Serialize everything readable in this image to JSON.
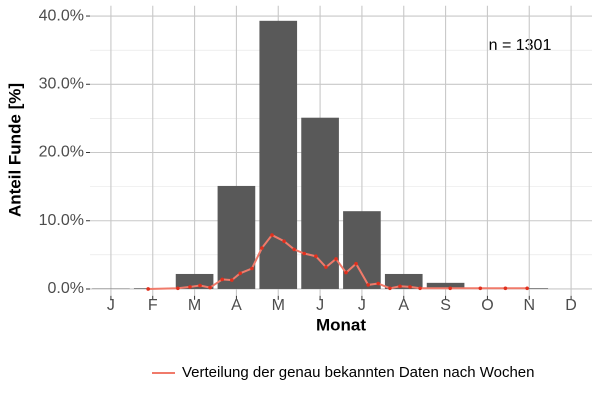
{
  "chart_data": {
    "type": "bar",
    "ylabel": "Anteil Funde [%]",
    "xlabel": "Monat",
    "annotation": "n = 1301",
    "categories": [
      "J",
      "F",
      "M",
      "A",
      "M",
      "J",
      "J",
      "A",
      "S",
      "O",
      "N",
      "D"
    ],
    "values": [
      0.05,
      0.1,
      2.2,
      15.1,
      39.3,
      25.1,
      11.4,
      2.2,
      0.9,
      0.2,
      0.1,
      0
    ],
    "color": "#595959",
    "ylim": [
      -1,
      41.5
    ],
    "yticks": [
      {
        "value": 0,
        "label": "0.0%"
      },
      {
        "value": 10,
        "label": "10.0%"
      },
      {
        "value": 20,
        "label": "20.0%"
      },
      {
        "value": 30,
        "label": "30.0%"
      },
      {
        "value": 40,
        "label": "40.0%"
      }
    ],
    "yminorticks": [
      5,
      15,
      25,
      35
    ],
    "xlim": [
      0.5,
      12.5
    ],
    "grid": true,
    "line": {
      "name": "Verteilung der genau bekannten Daten nach Wochen",
      "color": "#f07a6a",
      "marker_color": "#e0301e",
      "x": [
        1.89,
        2.6,
        2.89,
        3.13,
        3.37,
        3.66,
        3.89,
        4.09,
        4.37,
        4.61,
        4.85,
        5.14,
        5.38,
        5.62,
        5.9,
        6.14,
        6.38,
        6.62,
        6.86,
        7.15,
        7.39,
        7.67,
        7.91,
        8.15,
        8.39,
        9.11,
        9.83,
        10.43,
        10.95
      ],
      "values": [
        0,
        0.1,
        0.3,
        0.5,
        0.2,
        1.4,
        1.3,
        2.3,
        3.0,
        6.0,
        7.9,
        7.0,
        5.8,
        5.2,
        4.8,
        3.2,
        4.4,
        2.4,
        3.7,
        0.6,
        0.8,
        0.1,
        0.4,
        0.3,
        0.1,
        0.1,
        0.1,
        0.1,
        0.1
      ]
    },
    "legend": "bottom"
  }
}
